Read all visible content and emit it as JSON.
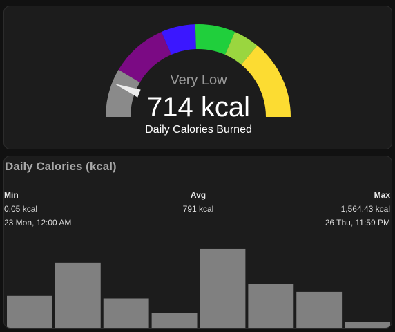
{
  "gauge": {
    "severity": "Very Low",
    "value_text": "714 kcal",
    "name": "Daily Calories Burned",
    "value": 714,
    "needle_fraction": 0.12,
    "segments": [
      {
        "color": "#8a8a8a"
      },
      {
        "color": "#7b0a84"
      },
      {
        "color": "#3b17ff"
      },
      {
        "color": "#20cf3c"
      },
      {
        "color": "#9ad63f"
      },
      {
        "color": "#fcdc32"
      }
    ]
  },
  "history": {
    "title": "Daily Calories (kcal)",
    "min": {
      "label": "Min",
      "value": "0.05 kcal",
      "time": "23 Mon, 12:00 AM"
    },
    "avg": {
      "label": "Avg",
      "value": "791 kcal"
    },
    "max": {
      "label": "Max",
      "value": "1,564.43 kcal",
      "time": "26 Thu, 11:59 PM"
    },
    "bar_color": "#808080",
    "chart_data": {
      "type": "bar",
      "values": [
        640,
        1290,
        590,
        300,
        1560,
        880,
        720,
        130
      ],
      "ylim": [
        0,
        1600
      ]
    }
  }
}
